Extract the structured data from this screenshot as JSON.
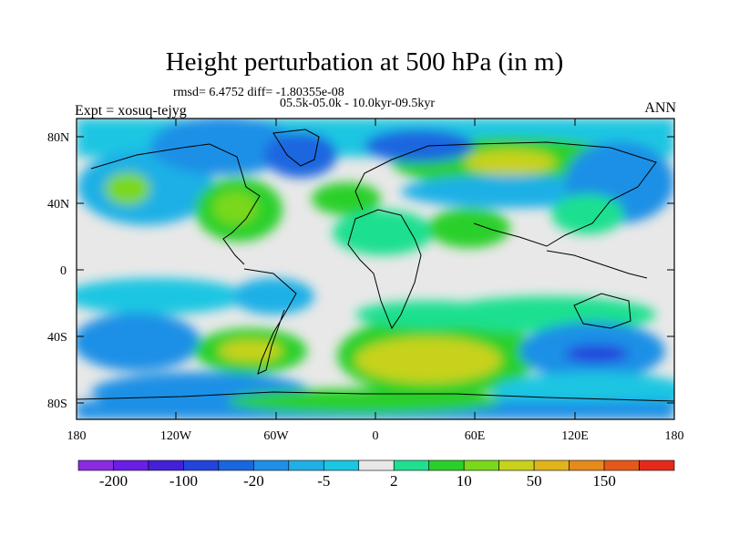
{
  "title": "Height perturbation at 500 hPa (in m)",
  "stats": "rmsd= 6.4752 diff= -1.80355e-08",
  "period": "05.5k-05.0k - 10.0kyr-09.5kyr",
  "experiment": "Expt = xosuq-tejyg",
  "season": "ANN",
  "lat_labels": [
    "80N",
    "40N",
    "0",
    "40S",
    "80S"
  ],
  "lon_labels": [
    "180",
    "120W",
    "60W",
    "0",
    "60E",
    "120E",
    "180"
  ],
  "colorbar": {
    "colors": [
      "#8a2be2",
      "#6a1ee6",
      "#4421d8",
      "#2244dd",
      "#1a66e0",
      "#1e90e6",
      "#1fb0e6",
      "#1ac6e2",
      "#e8e8e8",
      "#1ee090",
      "#2ad02a",
      "#7ad81a",
      "#c8d21a",
      "#e0b41a",
      "#e68a1a",
      "#e6581a",
      "#e62a1a"
    ],
    "labels": [
      "-200",
      "-100",
      "-20",
      "-5",
      "2",
      "10",
      "50",
      "150"
    ]
  }
}
